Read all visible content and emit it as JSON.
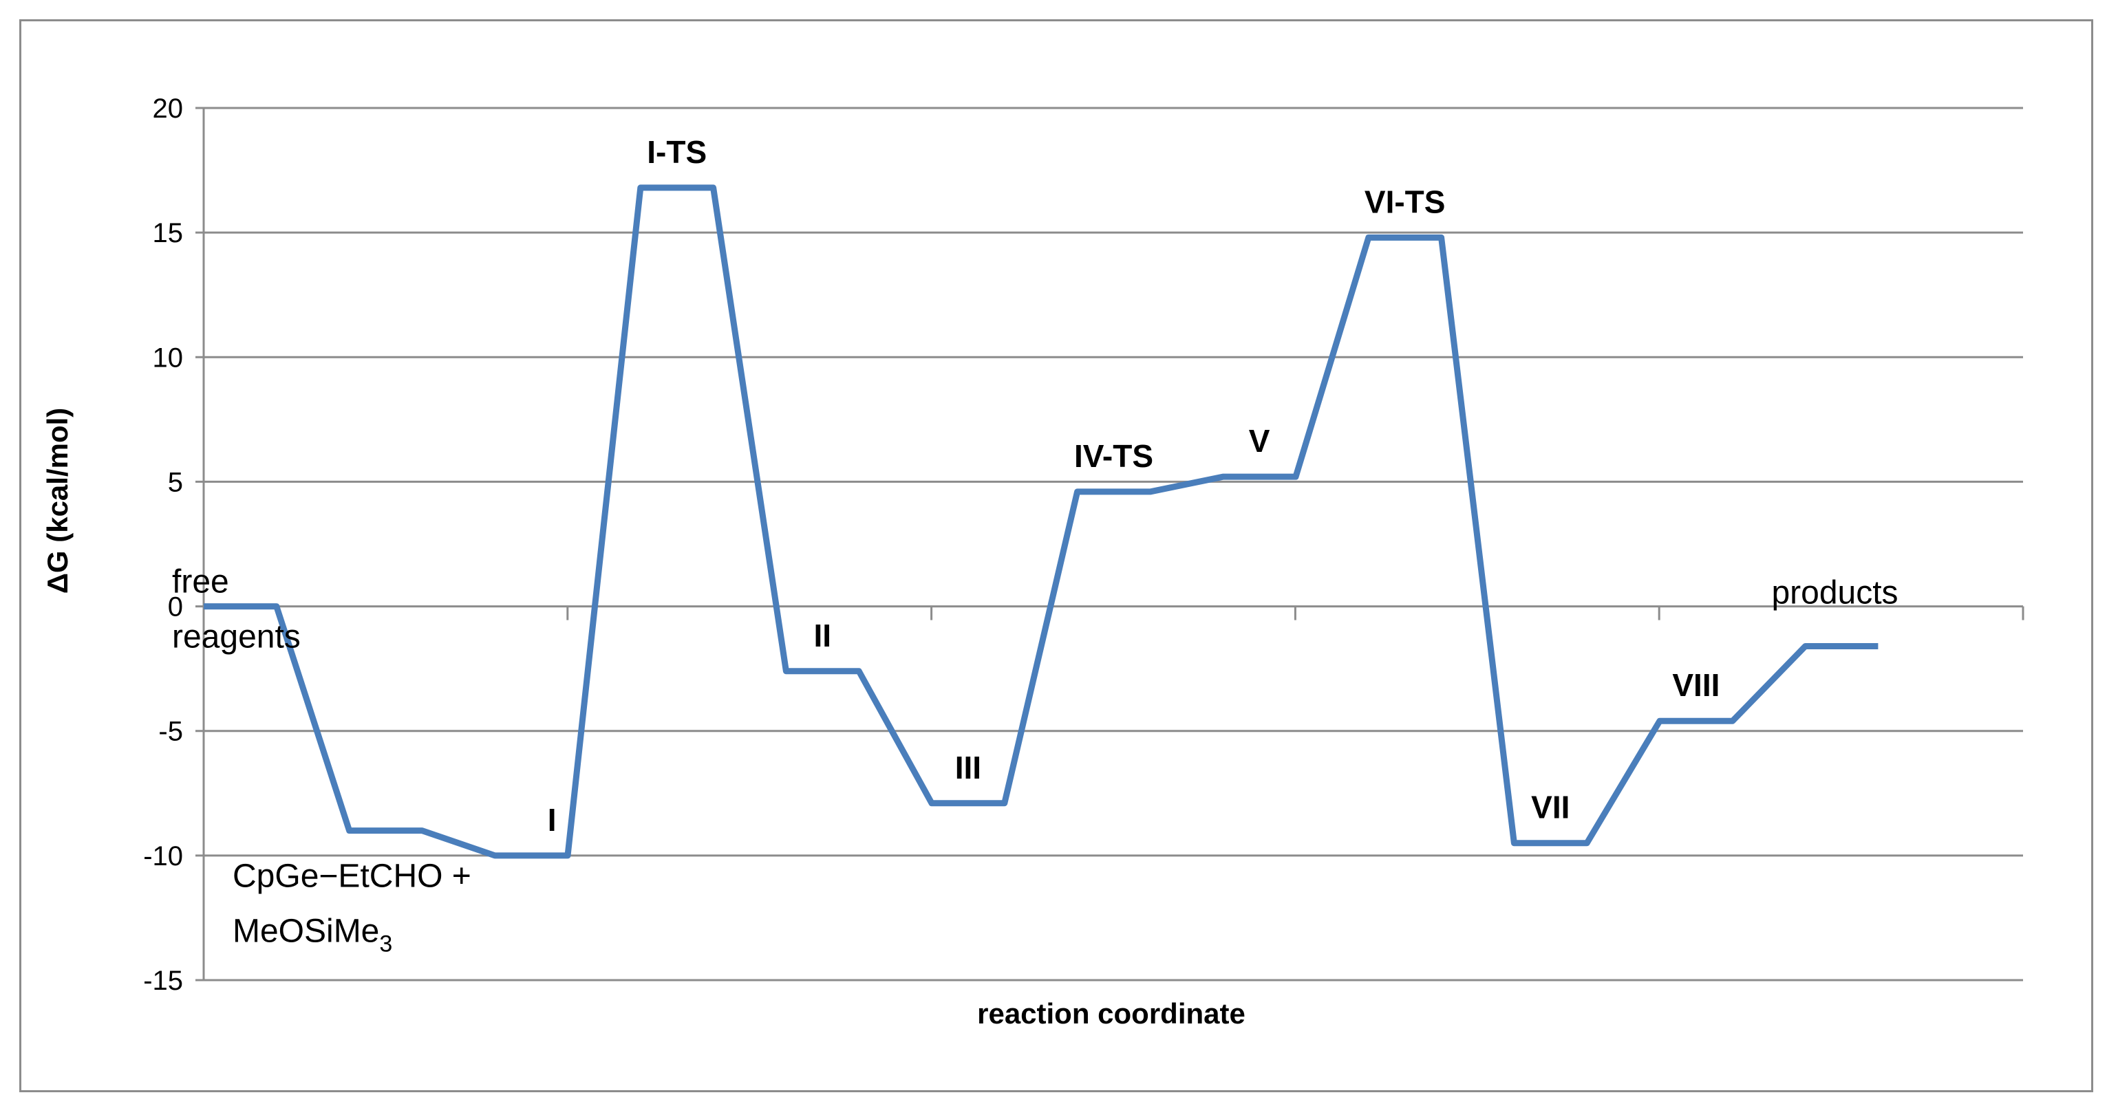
{
  "chart_data": {
    "type": "line",
    "title": "",
    "xlabel": "reaction coordinate",
    "ylabel": "ΔG (kcal/mol)",
    "ylim": [
      -15,
      20
    ],
    "yticks": [
      "20",
      "15",
      "10",
      "5",
      "0",
      "-5",
      "-10",
      "-15"
    ],
    "grid": true,
    "series_color": "#4a7ebb",
    "levels": [
      {
        "label": "free\nreagents",
        "y": 0
      },
      {
        "label": "",
        "y": -9
      },
      {
        "label": "I",
        "y": -10
      },
      {
        "label": "I-TS",
        "y": 16.8
      },
      {
        "label": "II",
        "y": -2.6
      },
      {
        "label": "III",
        "y": -7.9
      },
      {
        "label": "IV-TS",
        "y": 4.6
      },
      {
        "label": "V",
        "y": 5.2
      },
      {
        "label": "VI-TS",
        "y": 14.8
      },
      {
        "label": "VII",
        "y": -9.5
      },
      {
        "label": "VIII",
        "y": -4.6
      },
      {
        "label": "products",
        "y": -1.6
      }
    ],
    "annotations": [
      {
        "text": "CpGe−EtCHO +",
        "ref_level": 1
      },
      {
        "text": "MeOSiMe",
        "sub": "3",
        "ref_level": 1
      }
    ]
  }
}
